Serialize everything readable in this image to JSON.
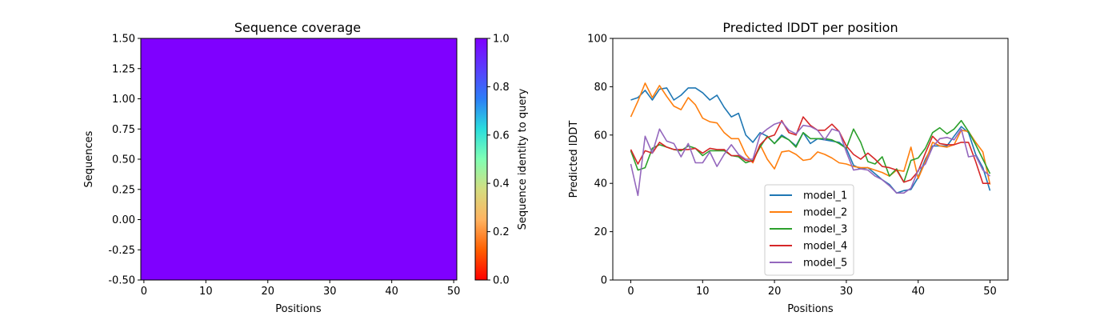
{
  "chart_data": [
    {
      "type": "heatmap",
      "title": "Sequence coverage",
      "xlabel": "Positions",
      "ylabel": "Sequences",
      "xlim": [
        -0.5,
        50.5
      ],
      "ylim": [
        -0.5,
        1.5
      ],
      "xticks": [
        0,
        10,
        20,
        30,
        40,
        50
      ],
      "yticks": [
        "-0.50",
        "-0.25",
        "0.00",
        "0.25",
        "0.50",
        "0.75",
        "1.00",
        "1.25",
        "1.50"
      ],
      "n_sequences": 1,
      "n_positions": 51,
      "value": 1.0,
      "fill_color": "#7f00ff",
      "colorbar": {
        "label": "Sequence identity to query",
        "ticks": [
          "0.0",
          "0.2",
          "0.4",
          "0.6",
          "0.8",
          "1.0"
        ],
        "range": [
          0,
          1
        ],
        "colormap": "rainbow_r"
      }
    },
    {
      "type": "line",
      "title": "Predicted lDDT per position",
      "xlabel": "Positions",
      "ylabel": "Predicted lDDT",
      "xlim": [
        -2.5,
        52.5
      ],
      "ylim": [
        0,
        100
      ],
      "xticks": [
        0,
        10,
        20,
        30,
        40,
        50
      ],
      "yticks": [
        0,
        20,
        40,
        60,
        80,
        100
      ],
      "grid": false,
      "legend": "lower center",
      "x": [
        0,
        1,
        2,
        3,
        4,
        5,
        6,
        7,
        8,
        9,
        10,
        11,
        12,
        13,
        14,
        15,
        16,
        17,
        18,
        19,
        20,
        21,
        22,
        23,
        24,
        25,
        26,
        27,
        28,
        29,
        30,
        31,
        32,
        33,
        34,
        35,
        36,
        37,
        38,
        39,
        40,
        41,
        42,
        43,
        44,
        45,
        46,
        47,
        48,
        49,
        50
      ],
      "series": [
        {
          "name": "model_1",
          "color": "#1f77b4",
          "values": [
            74.5,
            75.5,
            78.5,
            74.5,
            79,
            79.5,
            74.5,
            76.5,
            79.5,
            79.5,
            77.5,
            74.5,
            76.5,
            71.5,
            67.5,
            69,
            60,
            57,
            61,
            59.5,
            56.5,
            60,
            58,
            55.5,
            61,
            56.5,
            58.5,
            58,
            57.5,
            57,
            54.5,
            47.5,
            46,
            46.5,
            44,
            41.5,
            39.5,
            36,
            37,
            37.5,
            42.5,
            50,
            55.5,
            55.5,
            55.5,
            59.5,
            63.5,
            61,
            52,
            46.5,
            37
          ]
        },
        {
          "name": "model_2",
          "color": "#ff7f0e",
          "values": [
            67.5,
            74,
            81.5,
            75.5,
            80.5,
            76,
            72,
            70.5,
            75.5,
            72.5,
            67,
            65.5,
            65,
            61,
            58.5,
            58.5,
            52,
            48.5,
            56,
            50,
            46,
            53,
            53.5,
            52,
            49.5,
            50,
            53,
            52,
            50.5,
            48.5,
            48,
            47,
            46.5,
            46.5,
            45.5,
            44.5,
            43,
            45.5,
            45,
            55,
            42,
            49,
            57,
            55.5,
            55,
            56,
            62,
            61.5,
            57,
            53,
            39.5
          ]
        },
        {
          "name": "model_3",
          "color": "#2ca02c",
          "values": [
            53.5,
            45.5,
            46.5,
            54.5,
            56,
            55,
            54,
            53.5,
            55.5,
            54.5,
            51.5,
            53.5,
            53.5,
            53.5,
            51.5,
            51,
            48.5,
            49.5,
            55,
            59.5,
            56.5,
            59.5,
            58,
            55,
            61,
            58.5,
            58.5,
            58.5,
            58,
            56.5,
            54.5,
            62.5,
            57,
            49,
            48,
            51,
            43,
            46,
            40.5,
            49.5,
            50.5,
            54.5,
            61,
            63,
            60.5,
            62.5,
            66,
            61.5,
            56,
            50,
            44
          ]
        },
        {
          "name": "model_4",
          "color": "#d62728",
          "values": [
            54,
            48,
            53.5,
            52.5,
            57,
            55,
            54,
            54,
            54,
            54.5,
            52.5,
            54.5,
            54,
            54,
            51.5,
            51.5,
            49.5,
            49,
            56,
            59,
            60,
            66,
            61,
            60,
            67.5,
            64,
            62,
            62,
            64.5,
            61.5,
            55.5,
            52,
            50,
            52.5,
            50,
            47,
            46.5,
            45.5,
            40.5,
            41.5,
            45,
            52.5,
            59.5,
            56.5,
            56,
            56,
            57,
            57,
            49,
            40,
            40
          ]
        },
        {
          "name": "model_5",
          "color": "#9467bd",
          "values": [
            48,
            35,
            59.5,
            52.5,
            62.5,
            57.5,
            56.5,
            51,
            56.5,
            48.5,
            48.5,
            53,
            47,
            52,
            56,
            52,
            50,
            50,
            60,
            62.5,
            64.5,
            65.5,
            62,
            60.5,
            64,
            63.5,
            62,
            58,
            62.5,
            61.5,
            53,
            45.5,
            46,
            45.5,
            43,
            41.5,
            39,
            36,
            36,
            38,
            45.5,
            48,
            55,
            58.5,
            59,
            58,
            62.5,
            51,
            51.5,
            45.5,
            43
          ]
        }
      ]
    }
  ]
}
